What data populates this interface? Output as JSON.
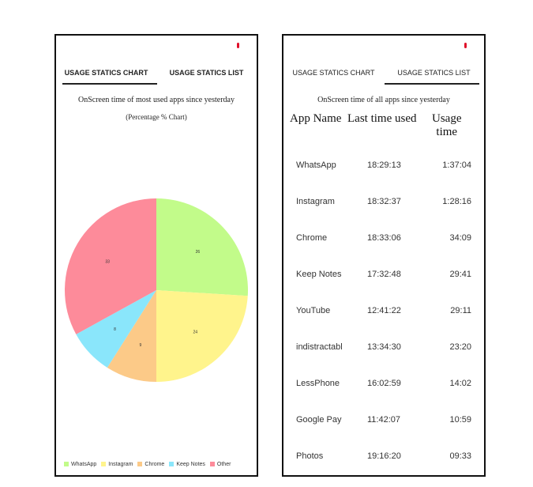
{
  "tabs": {
    "chart": "USAGE STATICS CHART",
    "list": "USAGE STATICS LIST"
  },
  "chart_screen": {
    "subtitle": "OnScreen time of most used apps since yesterday",
    "caption": "(Percentage % Chart)"
  },
  "list_screen": {
    "subtitle": "OnScreen time of all apps since yesterday",
    "headers": {
      "name": "App Name",
      "last": "Last time used",
      "usage1": "Usage",
      "usage2": "time"
    },
    "rows": [
      {
        "name": "WhatsApp",
        "last": "18:29:13",
        "usage": "1:37:04"
      },
      {
        "name": "Instagram",
        "last": "18:32:37",
        "usage": "1:28:16"
      },
      {
        "name": "Chrome",
        "last": "18:33:06",
        "usage": "34:09"
      },
      {
        "name": "Keep Notes",
        "last": "17:32:48",
        "usage": "29:41"
      },
      {
        "name": "YouTube",
        "last": "12:41:22",
        "usage": "29:11"
      },
      {
        "name": "indistractabl",
        "last": "13:34:30",
        "usage": "23:20"
      },
      {
        "name": "LessPhone",
        "last": "16:02:59",
        "usage": "14:02"
      },
      {
        "name": "Google Pay",
        "last": "11:42:07",
        "usage": "10:59"
      },
      {
        "name": "Photos",
        "last": "19:16:20",
        "usage": "09:33"
      }
    ]
  },
  "chart_data": {
    "type": "pie",
    "title": "OnScreen time of most used apps since yesterday",
    "categories": [
      "WhatsApp",
      "Instagram",
      "Chrome",
      "Keep Notes",
      "Other"
    ],
    "values": [
      26,
      24,
      9,
      8,
      33
    ],
    "colors": [
      "#c2fb8a",
      "#fff48c",
      "#fcca88",
      "#8ae6fb",
      "#fd8b9a"
    ],
    "legend": "bottom-left"
  }
}
